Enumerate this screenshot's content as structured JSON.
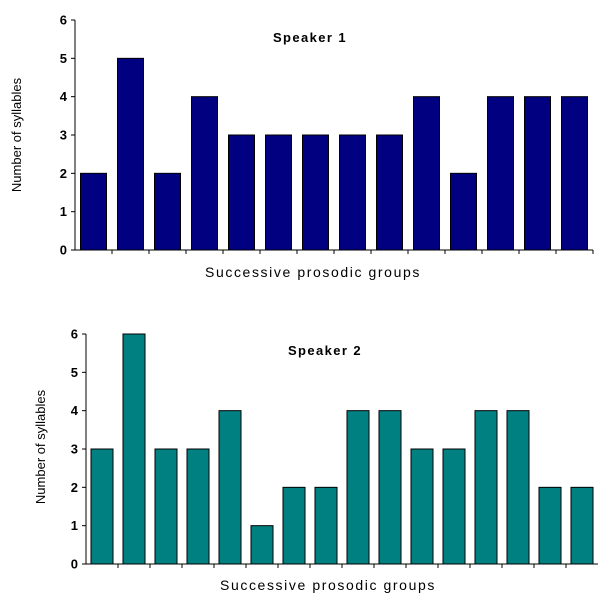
{
  "chart_data": [
    {
      "type": "bar",
      "title": "Speaker 1",
      "xlabel": "Successive prosodic groups",
      "ylabel": "Number of syllables",
      "ylim": [
        0,
        6
      ],
      "yticks": [
        "0",
        "1",
        "2",
        "3",
        "4",
        "5",
        "6"
      ],
      "values": [
        2,
        5,
        2,
        4,
        3,
        3,
        3,
        3,
        3,
        4,
        2,
        4,
        4,
        4
      ],
      "bar_color": "#000080",
      "grid": false
    },
    {
      "type": "bar",
      "title": "Speaker 2",
      "xlabel": "Successive prosodic groups",
      "ylabel": "Number of syllables",
      "ylim": [
        0,
        6
      ],
      "yticks": [
        "0",
        "1",
        "2",
        "3",
        "4",
        "5",
        "6"
      ],
      "values": [
        3,
        6,
        3,
        3,
        4,
        1,
        2,
        2,
        4,
        4,
        3,
        3,
        4,
        4,
        2,
        2
      ],
      "bar_color": "#008080",
      "grid": false
    }
  ]
}
